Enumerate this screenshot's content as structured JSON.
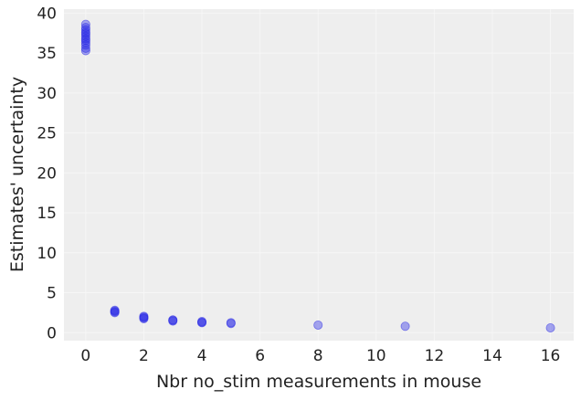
{
  "chart_data": {
    "type": "scatter",
    "title": "",
    "xlabel": "Nbr no_stim measurements in mouse",
    "ylabel": "Estimates' uncertainty",
    "xlim": [
      -0.75,
      16.8
    ],
    "ylim": [
      -1.0,
      40.5
    ],
    "xticks": [
      0,
      2,
      4,
      6,
      8,
      10,
      12,
      14,
      16
    ],
    "yticks": [
      0,
      5,
      10,
      15,
      20,
      25,
      30,
      35,
      40
    ],
    "grid": true,
    "background": "#eeeeee",
    "grid_color": "#f6f6f6",
    "point_color": "#2a2ae6",
    "point_opacity": 0.4,
    "points": [
      {
        "x": 0,
        "y": 38.6
      },
      {
        "x": 0,
        "y": 38.2
      },
      {
        "x": 0,
        "y": 37.9
      },
      {
        "x": 0,
        "y": 37.6
      },
      {
        "x": 0,
        "y": 37.4
      },
      {
        "x": 0,
        "y": 37.1
      },
      {
        "x": 0,
        "y": 36.8
      },
      {
        "x": 0,
        "y": 36.6
      },
      {
        "x": 0,
        "y": 36.3
      },
      {
        "x": 0,
        "y": 36.0
      },
      {
        "x": 0,
        "y": 35.6
      },
      {
        "x": 0,
        "y": 35.3
      },
      {
        "x": 1,
        "y": 2.8
      },
      {
        "x": 1,
        "y": 2.7
      },
      {
        "x": 1,
        "y": 2.6
      },
      {
        "x": 1,
        "y": 2.5
      },
      {
        "x": 2,
        "y": 2.05
      },
      {
        "x": 2,
        "y": 1.95
      },
      {
        "x": 2,
        "y": 1.85
      },
      {
        "x": 2,
        "y": 1.75
      },
      {
        "x": 3,
        "y": 1.6
      },
      {
        "x": 3,
        "y": 1.55
      },
      {
        "x": 3,
        "y": 1.45
      },
      {
        "x": 4,
        "y": 1.4
      },
      {
        "x": 4,
        "y": 1.3
      },
      {
        "x": 4,
        "y": 1.25
      },
      {
        "x": 5,
        "y": 1.25
      },
      {
        "x": 5,
        "y": 1.15
      },
      {
        "x": 8,
        "y": 0.95
      },
      {
        "x": 11,
        "y": 0.8
      },
      {
        "x": 16,
        "y": 0.6
      }
    ]
  }
}
